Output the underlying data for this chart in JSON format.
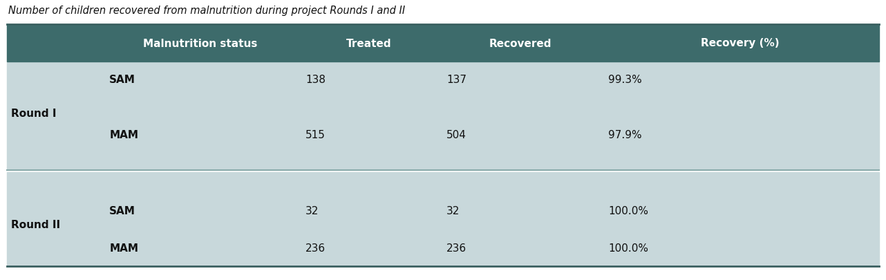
{
  "title": "Number of children recovered from malnutrition during project Rounds I and II",
  "title_fontsize": 10.5,
  "header_bg_color": "#3d6b6b",
  "header_text_color": "#ffffff",
  "body_bg_color": "#c8d8db",
  "body_text_color": "#111111",
  "separator_color": "#8aabab",
  "outer_line_color": "#3a6060",
  "headers": [
    "",
    "Malnutrition status",
    "Treated",
    "Recovered",
    "Recovery (%)"
  ],
  "rows": [
    {
      "group": "Round I",
      "status": "SAM",
      "treated": "138",
      "recovered": "137",
      "recovery": "99.3%"
    },
    {
      "group": "",
      "status": "MAM",
      "treated": "515",
      "recovered": "504",
      "recovery": "97.9%"
    },
    {
      "group": "Round II",
      "status": "SAM",
      "treated": "32",
      "recovered": "32",
      "recovery": "100.0%"
    },
    {
      "group": "",
      "status": "MAM",
      "treated": "236",
      "recovered": "236",
      "recovery": "100.0%"
    }
  ],
  "fig_width": 12.82,
  "fig_height": 4.06,
  "dpi": 100
}
